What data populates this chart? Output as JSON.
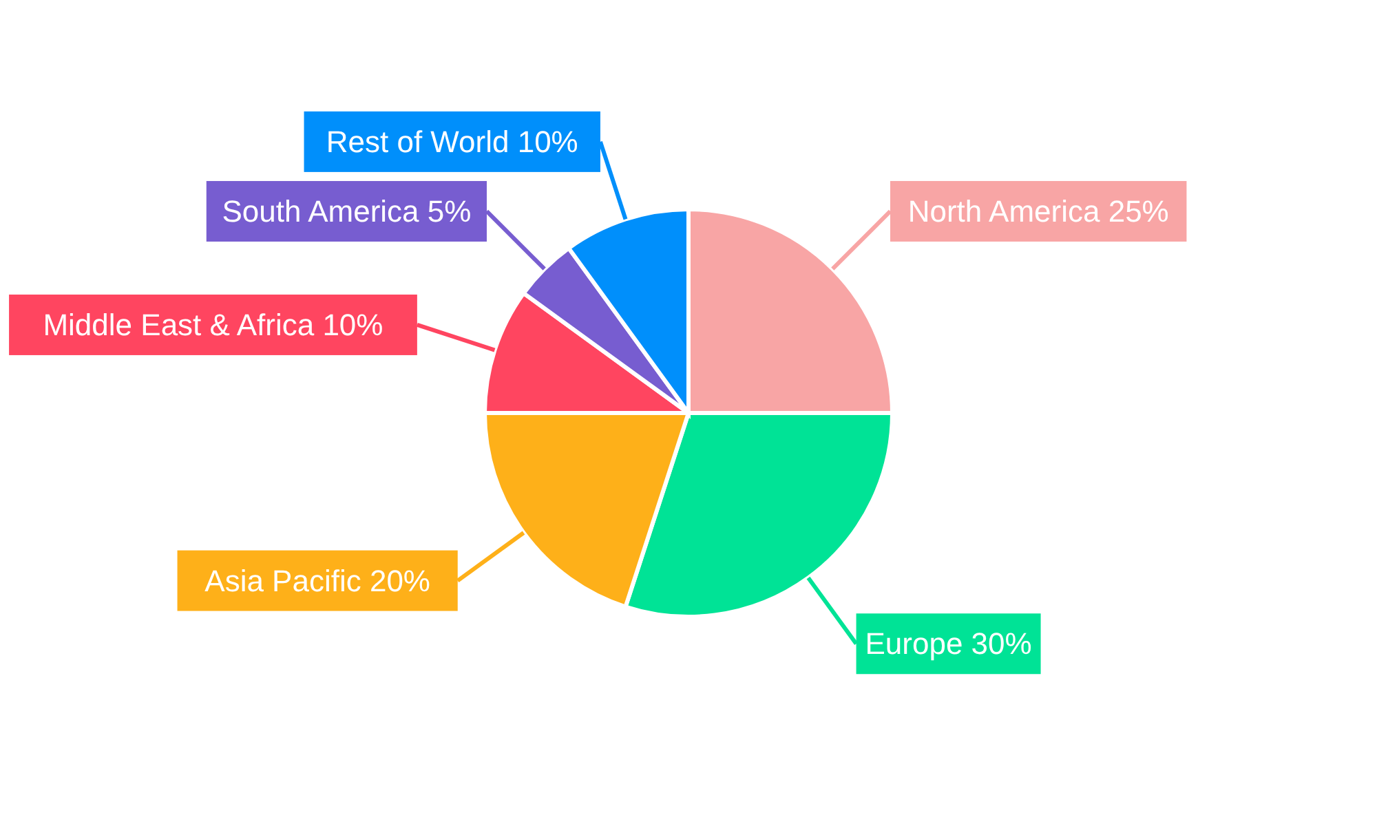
{
  "chart_data": {
    "type": "pie",
    "categories": [
      "North America",
      "Europe",
      "Asia Pacific",
      "Middle East & Africa",
      "South America",
      "Rest of World"
    ],
    "values": [
      25,
      30,
      20,
      10,
      5,
      10
    ],
    "colors": [
      "#f8a5a5",
      "#00e396",
      "#feb019",
      "#ff4560",
      "#775dd0",
      "#008ffb"
    ],
    "value_labels": [
      "25%",
      "30%",
      "20%",
      "10%",
      "5%",
      "10%"
    ]
  }
}
